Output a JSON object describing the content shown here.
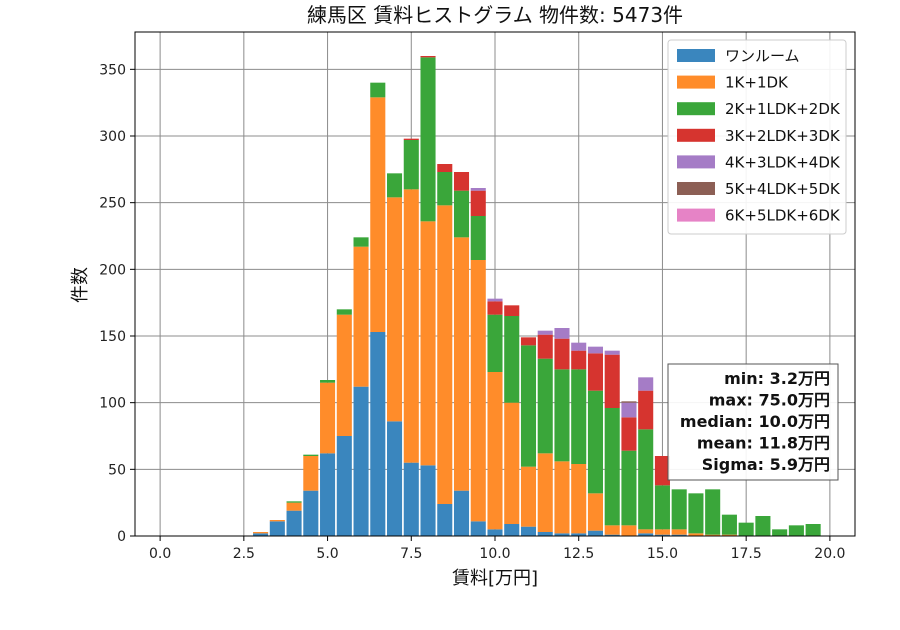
{
  "chart_data": {
    "type": "bar",
    "stacked": true,
    "title": "練馬区 賃料ヒストグラム 物件数: 5473件",
    "xlabel": "賃料[万円]",
    "ylabel": "件数",
    "xlim": [
      -0.75,
      20.75
    ],
    "ylim": [
      0,
      378
    ],
    "xticks": [
      0.0,
      2.5,
      5.0,
      7.5,
      10.0,
      12.5,
      15.0,
      17.5,
      20.0
    ],
    "xtick_labels": [
      "0.0",
      "2.5",
      "5.0",
      "7.5",
      "10.0",
      "12.5",
      "15.0",
      "17.5",
      "20.0"
    ],
    "yticks": [
      0,
      50,
      100,
      150,
      200,
      250,
      300,
      350
    ],
    "ytick_labels": [
      "0",
      "50",
      "100",
      "150",
      "200",
      "250",
      "300",
      "350"
    ],
    "grid": true,
    "legend_position": "top-right",
    "bin_width": 0.5,
    "x": [
      3.0,
      3.5,
      4.0,
      4.5,
      5.0,
      5.5,
      6.0,
      6.5,
      7.0,
      7.5,
      8.0,
      8.5,
      9.0,
      9.5,
      10.0,
      10.5,
      11.0,
      11.5,
      12.0,
      12.5,
      13.0,
      13.5,
      14.0,
      14.5,
      15.0,
      15.5,
      16.0,
      16.5,
      17.0,
      17.5,
      18.0,
      18.5,
      19.0,
      19.5
    ],
    "series": [
      {
        "name": "ワンルーム",
        "color": "#3a86be",
        "values": [
          2,
          11,
          19,
          34,
          62,
          75,
          112,
          153,
          86,
          55,
          53,
          24,
          34,
          11,
          5,
          9,
          7,
          3,
          2,
          2,
          4,
          1,
          0,
          2,
          1,
          1,
          0,
          0,
          0,
          0,
          0,
          0,
          0,
          0
        ]
      },
      {
        "name": "1K+1DK",
        "color": "#ff8c2a",
        "values": [
          1,
          1,
          6,
          26,
          53,
          91,
          105,
          176,
          168,
          205,
          183,
          224,
          190,
          196,
          118,
          91,
          45,
          59,
          54,
          52,
          28,
          7,
          8,
          3,
          4,
          4,
          2,
          1,
          1,
          0,
          0,
          0,
          0,
          0
        ]
      },
      {
        "name": "2K+1LDK+2DK",
        "color": "#3aa63a",
        "values": [
          0,
          0,
          1,
          1,
          2,
          4,
          7,
          11,
          18,
          37,
          123,
          25,
          35,
          33,
          43,
          65,
          91,
          71,
          69,
          71,
          77,
          88,
          56,
          75,
          33,
          30,
          30,
          34,
          15,
          10,
          15,
          5,
          8,
          9
        ]
      },
      {
        "name": "3K+2LDK+3DK",
        "color": "#d6342f",
        "values": [
          0,
          0,
          0,
          0,
          0,
          0,
          0,
          0,
          0,
          1,
          1,
          6,
          14,
          19,
          10,
          8,
          6,
          18,
          23,
          14,
          28,
          40,
          25,
          29,
          22,
          0,
          0,
          0,
          0,
          0,
          0,
          0,
          0,
          0
        ]
      },
      {
        "name": "4K+3LDK+4DK",
        "color": "#a57cc6",
        "values": [
          0,
          0,
          0,
          0,
          0,
          0,
          0,
          0,
          0,
          0,
          0,
          0,
          0,
          2,
          2,
          0,
          0,
          3,
          8,
          6,
          5,
          3,
          11,
          10,
          0,
          0,
          0,
          0,
          0,
          0,
          0,
          0,
          0,
          0
        ]
      },
      {
        "name": "5K+4LDK+5DK",
        "color": "#8c5f55",
        "values": [
          0,
          0,
          0,
          0,
          0,
          0,
          0,
          0,
          0,
          0,
          0,
          0,
          0,
          0,
          0,
          0,
          0,
          0,
          0,
          0,
          0,
          0,
          1,
          0,
          0,
          0,
          0,
          0,
          0,
          0,
          0,
          0,
          0,
          0
        ]
      },
      {
        "name": "6K+5LDK+6DK",
        "color": "#e683c6",
        "values": [
          0,
          0,
          0,
          0,
          0,
          0,
          0,
          0,
          0,
          0,
          0,
          0,
          0,
          0,
          0,
          0,
          0,
          0,
          0,
          0,
          0,
          0,
          0,
          0,
          0,
          0,
          0,
          0,
          0,
          0,
          0,
          0,
          0,
          0
        ]
      }
    ],
    "stats_box": {
      "position": "right",
      "lines": [
        "min: 3.2万円",
        "max: 75.0万円",
        "median: 10.0万円",
        "mean: 11.8万円",
        "Sigma: 5.9万円"
      ]
    }
  }
}
